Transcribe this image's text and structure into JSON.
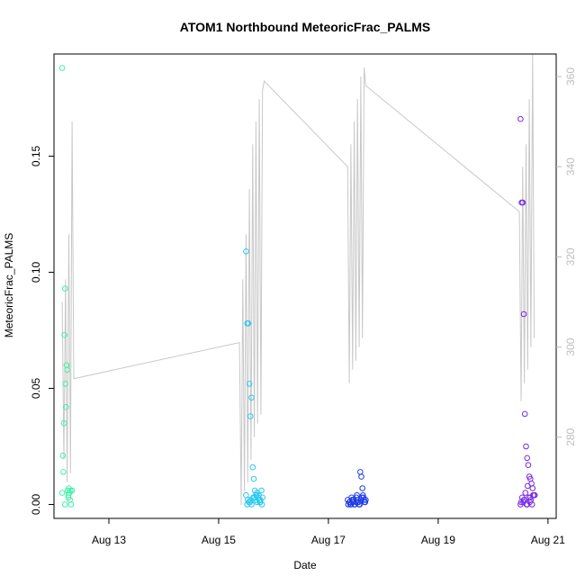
{
  "chart_data": {
    "type": "scatter",
    "title": "ATOM1 Northbound MeteoricFrac_PALMS",
    "xlabel": "Date",
    "ylabel": "MeteoricFrac_PALMS",
    "xlim": [
      12.0,
      21.15
    ],
    "ylim": [
      -0.006,
      0.194
    ],
    "y2lim": [
      262,
      365
    ],
    "x_ticks": [
      13,
      15,
      17,
      19,
      21
    ],
    "x_tick_labels": [
      "Aug 13",
      "Aug 15",
      "Aug 17",
      "Aug 19",
      "Aug 21"
    ],
    "y_ticks": [
      0.0,
      0.05,
      0.1,
      0.15
    ],
    "y_tick_labels": [
      "0.00",
      "0.05",
      "0.10",
      "0.15"
    ],
    "y2_ticks": [
      280,
      300,
      320,
      340,
      360
    ],
    "y2_tick_labels": [
      "280",
      "300",
      "320",
      "340",
      "360"
    ],
    "grid": false,
    "colors": {
      "line": "#c8c8c8",
      "axis": "#000000",
      "right_axis": "#bdbdbd"
    },
    "series": [
      {
        "color": "#40f0a8",
        "x": [
          12.15,
          12.16,
          12.17,
          12.18,
          12.19,
          12.2,
          12.21,
          12.22,
          12.23,
          12.24,
          12.25,
          12.26,
          12.27,
          12.28,
          12.29,
          12.3,
          12.31,
          12.33,
          12.15,
          12.2,
          12.26
        ],
        "y": [
          0.188,
          0.021,
          0.014,
          0.035,
          0.073,
          0.093,
          0.052,
          0.042,
          0.06,
          0.058,
          0.006,
          0.004,
          0.007,
          0.005,
          0.002,
          0.006,
          0.0,
          0.006,
          0.005,
          0.0,
          0.003
        ]
      },
      {
        "color": "#28c8f0",
        "x": [
          15.5,
          15.52,
          15.54,
          15.56,
          15.58,
          15.6,
          15.62,
          15.64,
          15.66,
          15.68,
          15.7,
          15.72,
          15.74,
          15.76,
          15.78,
          15.8,
          15.5,
          15.53,
          15.57,
          15.6,
          15.63,
          15.67,
          15.7,
          15.73,
          15.76,
          15.79,
          15.55,
          15.65,
          15.75,
          15.52,
          15.58,
          15.69
        ],
        "y": [
          0.109,
          0.078,
          0.078,
          0.052,
          0.038,
          0.046,
          0.016,
          0.011,
          0.006,
          0.004,
          0.005,
          0.003,
          0.002,
          0.001,
          0.006,
          0.003,
          0.004,
          0.002,
          0.001,
          0.0,
          0.003,
          0.002,
          0.001,
          0.004,
          0.002,
          0.0,
          0.001,
          0.003,
          0.001,
          0.0,
          0.002,
          0.004
        ]
      },
      {
        "color": "#1e3ce6",
        "x": [
          17.35,
          17.38,
          17.4,
          17.42,
          17.44,
          17.46,
          17.48,
          17.5,
          17.52,
          17.54,
          17.56,
          17.58,
          17.6,
          17.62,
          17.64,
          17.66,
          17.68,
          17.36,
          17.39,
          17.43,
          17.47,
          17.51,
          17.55,
          17.59,
          17.63,
          17.67,
          17.41,
          17.45,
          17.53,
          17.57,
          17.61,
          17.65
        ],
        "y": [
          0.002,
          0.001,
          0.0,
          0.003,
          0.001,
          0.002,
          0.0,
          0.001,
          0.004,
          0.002,
          0.0,
          0.014,
          0.012,
          0.007,
          0.003,
          0.001,
          0.002,
          0.0,
          0.001,
          0.002,
          0.0,
          0.003,
          0.001,
          0.002,
          0.004,
          0.001,
          0.0,
          0.002,
          0.001,
          0.0,
          0.003,
          0.002
        ]
      },
      {
        "color": "#7828e6",
        "x": [
          20.5,
          20.52,
          20.54,
          20.56,
          20.58,
          20.6,
          20.62,
          20.64,
          20.66,
          20.68,
          20.7,
          20.72,
          20.74,
          20.76,
          20.5,
          20.53,
          20.55,
          20.57,
          20.59,
          20.61,
          20.63,
          20.65,
          20.67,
          20.69,
          20.71,
          20.73,
          20.51,
          20.56,
          20.62,
          20.68
        ],
        "y": [
          0.166,
          0.13,
          0.13,
          0.082,
          0.039,
          0.025,
          0.02,
          0.017,
          0.012,
          0.011,
          0.009,
          0.007,
          0.004,
          0.004,
          0.0,
          0.003,
          0.001,
          0.002,
          0.005,
          0.0,
          0.008,
          0.003,
          0.001,
          0.002,
          0.0,
          0.004,
          0.001,
          0.002,
          0.0,
          0.003
        ]
      }
    ],
    "line_series": {
      "axis": "right",
      "x": [
        12.15,
        12.18,
        12.21,
        12.24,
        12.27,
        12.3,
        12.33,
        12.36,
        15.38,
        15.41,
        15.44,
        15.47,
        15.5,
        15.53,
        15.56,
        15.59,
        15.62,
        15.65,
        15.68,
        15.71,
        15.74,
        15.77,
        15.8,
        15.83,
        17.35,
        17.38,
        17.41,
        17.44,
        17.47,
        17.5,
        17.53,
        17.56,
        17.59,
        17.62,
        17.65,
        17.68,
        20.48,
        20.51,
        20.54,
        20.57,
        20.6,
        20.63,
        20.66,
        20.69,
        20.72,
        20.75
      ],
      "y": [
        310,
        275,
        315,
        270,
        325,
        272,
        350,
        293,
        301,
        265,
        315,
        268,
        325,
        270,
        335,
        275,
        345,
        280,
        350,
        283,
        355,
        285,
        357,
        359,
        340,
        292,
        345,
        295,
        350,
        297,
        355,
        300,
        360,
        302,
        362,
        358,
        330,
        288,
        340,
        292,
        345,
        295,
        355,
        300,
        365,
        302
      ]
    }
  }
}
